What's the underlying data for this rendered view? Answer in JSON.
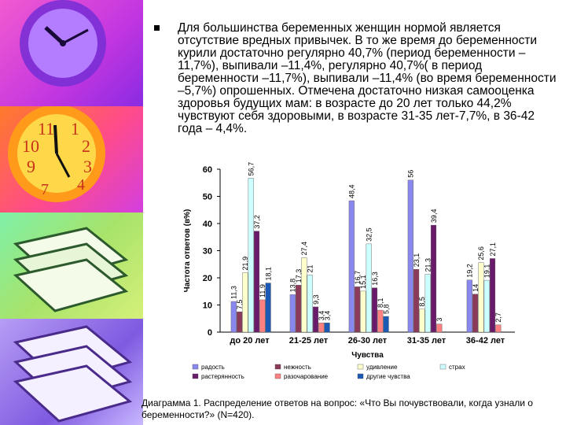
{
  "bullet": {
    "text": "Для большинства беременных женщин нормой является отсутствие вредных привычек. В то же время до беременности курили достаточно регулярно 40,7% (период беременности – 11,7%), выпивали –11,4%, регулярно 40,7%( в период беременности –11,7%), выпивали –11,4% (во время беременности –5,7%) опрошенных. Отмечена достаточно низкая самооценка здоровья будущих мам: в возрасте до 20 лет только 44,2% чувствуют себя здоровыми, в возрасте 31-35 лет-7,7%, в 36-42 года – 4,4%."
  },
  "caption": {
    "text": "Диаграмма 1. Распределение ответов на вопрос: «Что Вы почувствовали, когда узнали о беременности?» (N=420)."
  },
  "chart_data": {
    "type": "bar",
    "categories": [
      "до 20 лет",
      "21-25 лет",
      "26-30 лет",
      "31-35 лет",
      "36-42 лет"
    ],
    "xlabel": "Чувства",
    "ylabel": "Частота ответов (в%)",
    "ylim": [
      0,
      60
    ],
    "yticks": [
      "0",
      "10",
      "20",
      "30",
      "40",
      "50",
      "60"
    ],
    "grid": false,
    "legend_position": "bottom",
    "series": [
      {
        "name": "радость",
        "color": "#8888ee",
        "values": [
          11.3,
          13.8,
          48.4,
          56.0,
          19.2
        ],
        "labels": [
          "11,3",
          "13,8",
          "48,4",
          "56",
          "19,2"
        ]
      },
      {
        "name": "нежность",
        "color": "#8b3a5a",
        "values": [
          7.5,
          17.3,
          16.7,
          23.1,
          14.0
        ],
        "labels": [
          "7,5",
          "17,3",
          "16,7",
          "23,1",
          "14"
        ]
      },
      {
        "name": "удивление",
        "color": "#ffffcc",
        "values": [
          21.9,
          27.4,
          15.1,
          8.5,
          25.6
        ],
        "labels": [
          "21,9",
          "27,4",
          "15,1",
          "8,5",
          "25,6"
        ]
      },
      {
        "name": "страх",
        "color": "#ccffff",
        "values": [
          56.7,
          21.0,
          32.5,
          21.3,
          19.1
        ],
        "labels": [
          "56,7",
          "21",
          "32,5",
          "21,3",
          "19,1"
        ]
      },
      {
        "name": "растерянность",
        "color": "#6a1a6a",
        "values": [
          37.2,
          9.3,
          16.3,
          39.4,
          27.1
        ],
        "labels": [
          "37,2",
          "9,3",
          "16,3",
          "39,4",
          "27,1"
        ]
      },
      {
        "name": "разочарование",
        "color": "#ff8080",
        "values": [
          11.9,
          3.4,
          8.1,
          3.0,
          2.7
        ],
        "labels": [
          "11,9",
          "3,4",
          "8,1",
          "3",
          "2,7"
        ]
      },
      {
        "name": "другие чувства",
        "color": "#1a5ab4",
        "values": [
          18.1,
          3.4,
          5.8,
          0,
          0
        ],
        "labels": [
          "18,1",
          "3,4",
          "5,8",
          "",
          ""
        ]
      }
    ]
  }
}
